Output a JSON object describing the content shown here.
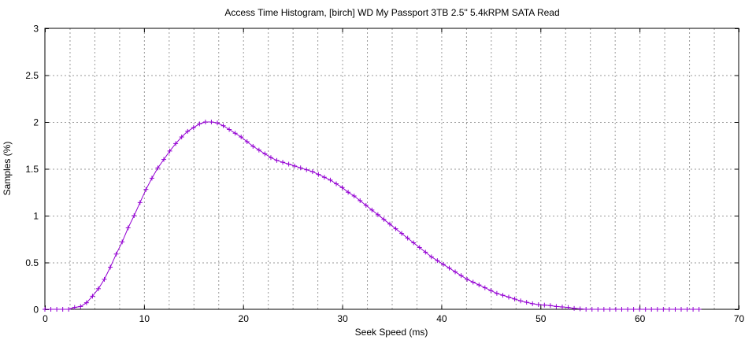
{
  "chart_data": {
    "type": "line",
    "title": "Access Time Histogram, [birch] WD My Passport 3TB 2.5\" 5.4kRPM SATA Read",
    "xlabel": "Seek Speed (ms)",
    "ylabel": "Samples (%)",
    "xlim": [
      0,
      70
    ],
    "ylim": [
      0,
      3
    ],
    "x_ticks": [
      0,
      10,
      20,
      30,
      40,
      50,
      60,
      70
    ],
    "y_ticks": [
      0,
      0.5,
      1,
      1.5,
      2,
      2.5,
      3
    ],
    "x_tick_labels": [
      "0",
      "10",
      "20",
      "30",
      "40",
      "50",
      "60",
      "70"
    ],
    "y_tick_labels": [
      "0",
      "0.5",
      "1",
      "1.5",
      "2",
      "2.5",
      "3"
    ],
    "grid": true,
    "marker": "plus",
    "color": "#9400d3",
    "series": [
      {
        "x": [
          0,
          0.6,
          1.2,
          1.8,
          2.4,
          3.0,
          3.6,
          4.2,
          4.8,
          5.4,
          6.0,
          6.6,
          7.2,
          7.8,
          8.4,
          9.0,
          9.6,
          10.2,
          10.8,
          11.4,
          12.0,
          12.6,
          13.2,
          13.8,
          14.4,
          15.0,
          15.6,
          16.2,
          16.8,
          17.4,
          18.0,
          18.6,
          19.2,
          19.8,
          20.4,
          21.0,
          21.6,
          22.2,
          22.8,
          23.4,
          24.0,
          24.6,
          25.2,
          25.8,
          26.4,
          27.0,
          27.6,
          28.2,
          28.8,
          29.4,
          30.0,
          30.6,
          31.2,
          31.8,
          32.4,
          33.0,
          33.6,
          34.2,
          34.8,
          35.4,
          36.0,
          36.6,
          37.2,
          37.8,
          38.4,
          39.0,
          39.6,
          40.2,
          40.8,
          41.4,
          42.0,
          42.6,
          43.2,
          43.8,
          44.4,
          45.0,
          45.6,
          46.2,
          46.8,
          47.4,
          48.0,
          48.6,
          49.2,
          49.8,
          50.4,
          51.0,
          51.6,
          52.2,
          52.8,
          53.4,
          54.0,
          54.6,
          55.2,
          55.8,
          56.4,
          57.0,
          57.6,
          58.2,
          58.8,
          59.4,
          60.0,
          60.6,
          61.2,
          61.8,
          62.4,
          63.0,
          63.6,
          64.2,
          64.8,
          65.4,
          66.0
        ],
        "y": [
          0,
          0,
          0,
          0,
          0,
          0.02,
          0.03,
          0.07,
          0.14,
          0.22,
          0.32,
          0.45,
          0.59,
          0.72,
          0.87,
          1.0,
          1.14,
          1.28,
          1.4,
          1.51,
          1.6,
          1.69,
          1.77,
          1.84,
          1.9,
          1.94,
          1.98,
          2.0,
          2.0,
          1.99,
          1.96,
          1.92,
          1.88,
          1.84,
          1.79,
          1.74,
          1.7,
          1.66,
          1.62,
          1.59,
          1.57,
          1.55,
          1.53,
          1.51,
          1.49,
          1.47,
          1.44,
          1.41,
          1.38,
          1.34,
          1.3,
          1.25,
          1.21,
          1.16,
          1.11,
          1.06,
          1.01,
          0.96,
          0.91,
          0.86,
          0.81,
          0.76,
          0.71,
          0.66,
          0.61,
          0.56,
          0.52,
          0.48,
          0.44,
          0.4,
          0.36,
          0.32,
          0.29,
          0.26,
          0.23,
          0.2,
          0.17,
          0.15,
          0.13,
          0.11,
          0.09,
          0.075,
          0.06,
          0.05,
          0.045,
          0.04,
          0.03,
          0.025,
          0.02,
          0.01,
          0.005,
          0,
          0,
          0,
          0,
          0,
          0,
          0,
          0,
          0,
          0,
          0,
          0,
          0,
          0,
          0,
          0,
          0,
          0,
          0,
          0
        ]
      }
    ]
  }
}
